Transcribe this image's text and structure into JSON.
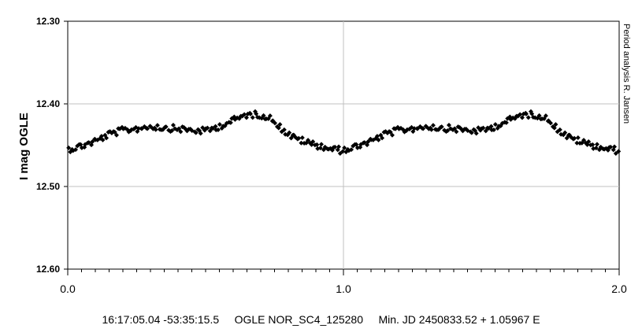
{
  "chart_data": {
    "type": "scatter",
    "ylabel": "I mag OGLE",
    "side_note": "Period analysis  R. Jansen",
    "caption": "16:17:05.04 -53:35:15.5     OGLE NOR_SC4_125280     Min. JD 2450833.52 + 1.05967 E",
    "xlim": [
      0,
      2
    ],
    "ylim": [
      12.3,
      12.6
    ],
    "y_inverted": true,
    "x_tick_labels": [
      "0.0",
      "1.0",
      "2.0"
    ],
    "y_tick_labels": [
      "12.30",
      "12.40",
      "12.50",
      "12.60"
    ],
    "grid": "major gridlines",
    "marker_color": "#000000",
    "light_curve_profile": [
      [
        0.0,
        12.455
      ],
      [
        0.05,
        12.451
      ],
      [
        0.1,
        12.445
      ],
      [
        0.15,
        12.437
      ],
      [
        0.2,
        12.432
      ],
      [
        0.25,
        12.43
      ],
      [
        0.3,
        12.427
      ],
      [
        0.35,
        12.429
      ],
      [
        0.4,
        12.43
      ],
      [
        0.45,
        12.432
      ],
      [
        0.5,
        12.433
      ],
      [
        0.55,
        12.427
      ],
      [
        0.6,
        12.42
      ],
      [
        0.65,
        12.413
      ],
      [
        0.7,
        12.413
      ],
      [
        0.75,
        12.42
      ],
      [
        0.78,
        12.432
      ],
      [
        0.82,
        12.441
      ],
      [
        0.88,
        12.448
      ],
      [
        0.94,
        12.453
      ],
      [
        1.0,
        12.457
      ]
    ],
    "phase_points": 160,
    "scatter_mag": 0.004
  }
}
